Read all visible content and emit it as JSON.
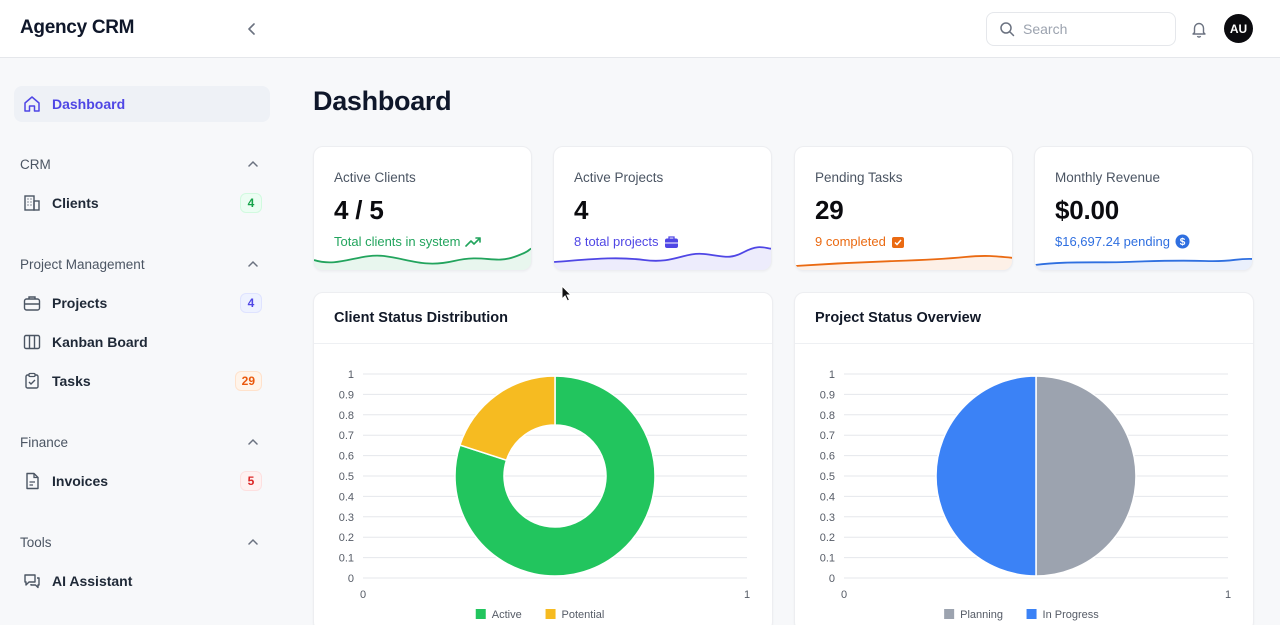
{
  "app": {
    "title": "Agency CRM"
  },
  "header": {
    "search_placeholder": "Search",
    "avatar_initials": "AU"
  },
  "sidebar": {
    "dashboard": "Dashboard",
    "sections": {
      "crm": "CRM",
      "project_management": "Project Management",
      "finance": "Finance",
      "tools": "Tools"
    },
    "items": {
      "clients": {
        "label": "Clients",
        "badge": "4"
      },
      "projects": {
        "label": "Projects",
        "badge": "4"
      },
      "kanban": {
        "label": "Kanban Board"
      },
      "tasks": {
        "label": "Tasks",
        "badge": "29"
      },
      "invoices": {
        "label": "Invoices",
        "badge": "5"
      },
      "ai_assistant": {
        "label": "AI Assistant"
      }
    }
  },
  "page": {
    "title": "Dashboard"
  },
  "stats": {
    "active_clients": {
      "title": "Active Clients",
      "value": "4 / 5",
      "sub": "Total clients in system",
      "color": "#22a45d"
    },
    "active_projects": {
      "title": "Active Projects",
      "value": "4",
      "sub": "8 total projects",
      "color": "#4f46e5"
    },
    "pending_tasks": {
      "title": "Pending Tasks",
      "value": "29",
      "sub": "9 completed",
      "color": "#ea6a12"
    },
    "monthly_revenue": {
      "title": "Monthly Revenue",
      "value": "$0.00",
      "sub": "$16,697.24 pending",
      "color": "#2f6fe0"
    }
  },
  "chart_data": [
    {
      "type": "doughnut",
      "title": "Client Status Distribution",
      "categories": [
        "Active",
        "Potential"
      ],
      "values": [
        4,
        1
      ],
      "colors": [
        "#22c55e",
        "#f6bb21"
      ],
      "y_ticks": [
        "1",
        "0.9",
        "0.8",
        "0.7",
        "0.6",
        "0.5",
        "0.4",
        "0.3",
        "0.2",
        "0.1",
        "0"
      ],
      "x_ticks": [
        "0",
        "1"
      ],
      "legend": "bottom",
      "grid": true
    },
    {
      "type": "pie",
      "title": "Project Status Overview",
      "categories": [
        "Planning",
        "In Progress"
      ],
      "values": [
        1,
        1
      ],
      "colors": [
        "#9ca3af",
        "#3b82f6"
      ],
      "y_ticks": [
        "1",
        "0.9",
        "0.8",
        "0.7",
        "0.6",
        "0.5",
        "0.4",
        "0.3",
        "0.2",
        "0.1",
        "0"
      ],
      "x_ticks": [
        "0",
        "1"
      ],
      "legend": "bottom",
      "grid": true
    }
  ]
}
